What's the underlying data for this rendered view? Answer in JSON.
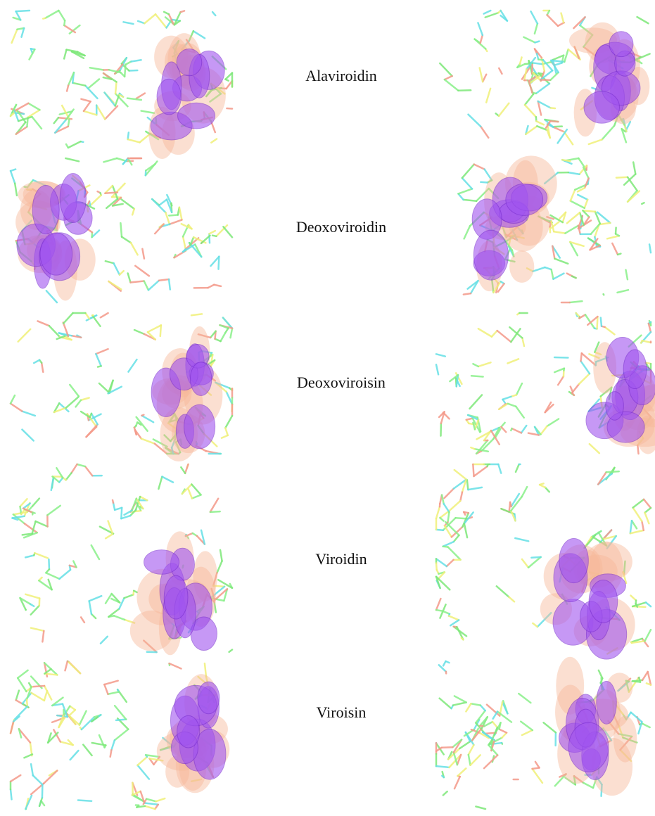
{
  "rows": [
    {
      "label": "Alaviroidin"
    },
    {
      "label": "Deoxoviroidin"
    },
    {
      "label": "Deoxoviroisin"
    },
    {
      "label": "Viroidin"
    },
    {
      "label": "Viroisin"
    }
  ]
}
